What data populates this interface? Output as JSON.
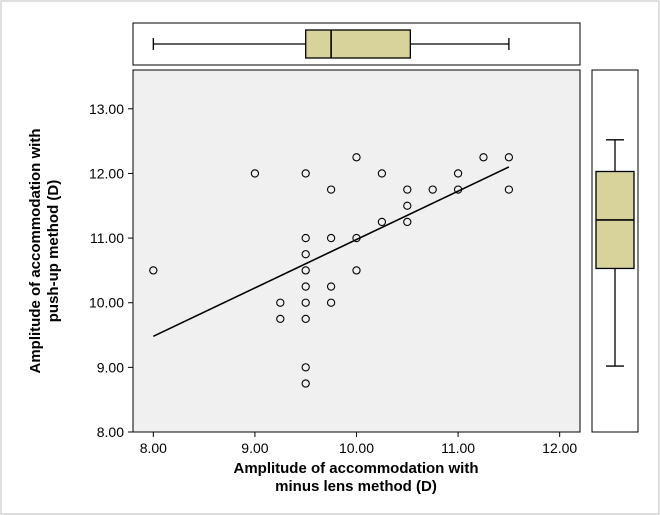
{
  "chart_data": {
    "type": "scatter",
    "xlabel_lines": [
      "Amplitude of accommodation with",
      "minus lens method (D)"
    ],
    "ylabel_lines": [
      "Amplitude of accommodation with",
      "push-up method (D)"
    ],
    "xlim": [
      7.8,
      12.2
    ],
    "ylim": [
      8.0,
      13.6
    ],
    "xticks": [
      "8.00",
      "9.00",
      "10.00",
      "11.00",
      "12.00"
    ],
    "yticks": [
      "8.00",
      "9.00",
      "10.00",
      "11.00",
      "12.00",
      "13.00"
    ],
    "points": [
      {
        "x": 8.0,
        "y": 10.5
      },
      {
        "x": 9.0,
        "y": 12.0
      },
      {
        "x": 9.25,
        "y": 10.0
      },
      {
        "x": 9.25,
        "y": 9.75
      },
      {
        "x": 9.5,
        "y": 12.0
      },
      {
        "x": 9.5,
        "y": 11.0
      },
      {
        "x": 9.5,
        "y": 10.75
      },
      {
        "x": 9.5,
        "y": 10.5
      },
      {
        "x": 9.5,
        "y": 10.25
      },
      {
        "x": 9.5,
        "y": 10.0
      },
      {
        "x": 9.5,
        "y": 9.75
      },
      {
        "x": 9.5,
        "y": 9.0
      },
      {
        "x": 9.5,
        "y": 8.75
      },
      {
        "x": 9.75,
        "y": 11.75
      },
      {
        "x": 9.75,
        "y": 11.0
      },
      {
        "x": 9.75,
        "y": 10.25
      },
      {
        "x": 9.75,
        "y": 10.0
      },
      {
        "x": 10.0,
        "y": 12.25
      },
      {
        "x": 10.0,
        "y": 11.0
      },
      {
        "x": 10.0,
        "y": 10.5
      },
      {
        "x": 10.25,
        "y": 12.0
      },
      {
        "x": 10.25,
        "y": 11.25
      },
      {
        "x": 10.5,
        "y": 11.75
      },
      {
        "x": 10.5,
        "y": 11.5
      },
      {
        "x": 10.5,
        "y": 11.25
      },
      {
        "x": 10.75,
        "y": 11.75
      },
      {
        "x": 11.0,
        "y": 12.0
      },
      {
        "x": 11.0,
        "y": 11.75
      },
      {
        "x": 11.25,
        "y": 12.25
      },
      {
        "x": 11.5,
        "y": 12.25
      },
      {
        "x": 11.5,
        "y": 11.75
      }
    ],
    "regression_line": {
      "x1": 8.0,
      "y1": 9.48,
      "x2": 11.5,
      "y2": 12.1
    },
    "marginal_boxplot_x": {
      "min": 8.0,
      "q1": 9.5,
      "median": 9.75,
      "q3": 10.53,
      "max": 11.5
    },
    "marginal_boxplot_y": {
      "min": 9.02,
      "q1": 10.53,
      "median": 11.28,
      "q3": 12.03,
      "max": 12.52
    },
    "colors": {
      "plot_background": "#f0f0f0",
      "box_fill": "#d8d29b",
      "ink": "#000000",
      "frame": "#bfbfbf"
    }
  }
}
